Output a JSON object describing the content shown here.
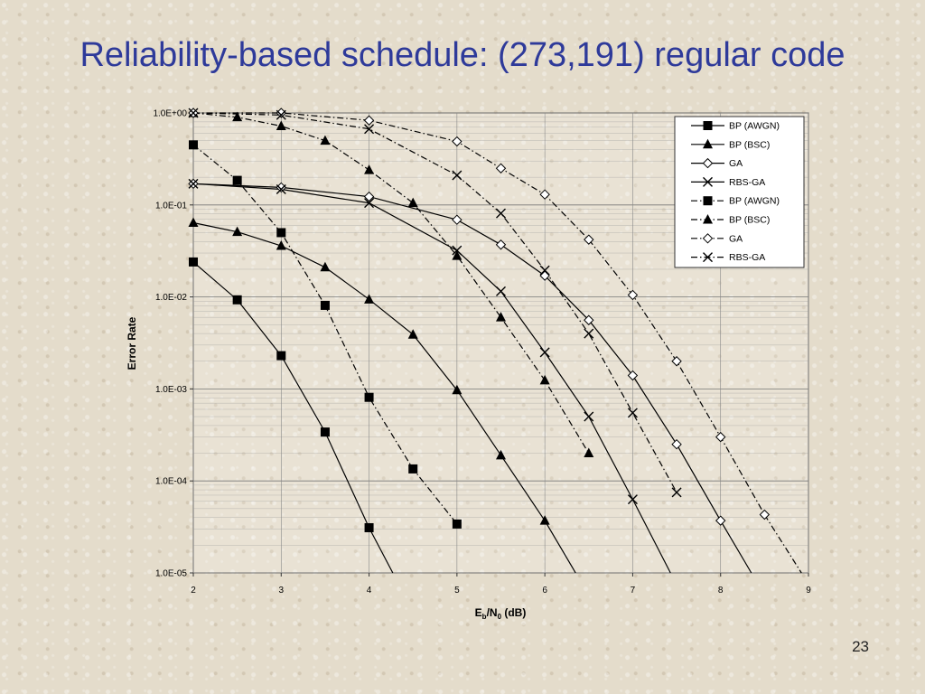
{
  "slide": {
    "title": "Reliability-based schedule: (273,191) regular code",
    "page_number": "23"
  },
  "chart_data": {
    "type": "line",
    "title": "",
    "xlabel_main": "E",
    "xlabel_sub1": "b",
    "xlabel_mid": "/N",
    "xlabel_sub2": "0",
    "xlabel_tail": " (dB)",
    "ylabel": "Error Rate",
    "xlim": [
      2,
      9
    ],
    "ylim": [
      1e-05,
      1
    ],
    "yscale": "log",
    "x_ticks": [
      "2",
      "3",
      "4",
      "5",
      "6",
      "7",
      "8",
      "9"
    ],
    "y_ticks": [
      "1.0E+00",
      "1.0E-01",
      "1.0E-02",
      "1.0E-03",
      "1.0E-04",
      "1.0E-05"
    ],
    "grid": true,
    "legend_position": "top-right",
    "series": [
      {
        "name": "BP (AWGN)",
        "line": "solid",
        "marker": "square",
        "x": [
          2,
          2.5,
          3,
          3.5,
          4
        ],
        "y": [
          0.024,
          0.0093,
          0.0023,
          0.00034,
          3.1e-05
        ],
        "ext_x": [
          4,
          4.27
        ],
        "ext_y": [
          3.1e-05,
          1e-05
        ]
      },
      {
        "name": "BP (BSC)",
        "line": "solid",
        "marker": "triangle",
        "x": [
          2,
          2.5,
          3,
          3.5,
          4,
          4.5,
          5,
          5.5,
          6
        ],
        "y": [
          0.064,
          0.051,
          0.036,
          0.021,
          0.0094,
          0.0039,
          0.00097,
          0.00019,
          3.7e-05
        ],
        "ext_x": [
          6,
          6.35
        ],
        "ext_y": [
          3.7e-05,
          1e-05
        ]
      },
      {
        "name": "GA",
        "line": "solid",
        "marker": "diamond",
        "x": [
          2,
          3,
          4,
          5,
          5.5,
          6,
          6.5,
          7,
          7.5,
          8
        ],
        "y": [
          0.17,
          0.155,
          0.123,
          0.069,
          0.037,
          0.017,
          0.0056,
          0.0014,
          0.00025,
          3.7e-05
        ],
        "ext_x": [
          8,
          8.35
        ],
        "ext_y": [
          3.7e-05,
          1e-05
        ]
      },
      {
        "name": "RBS-GA",
        "line": "solid",
        "marker": "cross",
        "x": [
          2,
          3,
          4,
          5,
          5.5,
          6,
          6.5,
          7
        ],
        "y": [
          0.17,
          0.148,
          0.105,
          0.032,
          0.0115,
          0.0025,
          0.0005,
          6.3e-05
        ],
        "ext_x": [
          7,
          7.43
        ],
        "ext_y": [
          6.3e-05,
          1e-05
        ]
      },
      {
        "name": "BP (AWGN)",
        "line": "dashdot",
        "marker": "square",
        "x": [
          2,
          2.5,
          3,
          3.5,
          4,
          4.5,
          5
        ],
        "y": [
          0.45,
          0.185,
          0.05,
          0.0081,
          0.00081,
          0.000135,
          3.4e-05
        ],
        "ext_x": [],
        "ext_y": []
      },
      {
        "name": "BP (BSC)",
        "line": "dashdot",
        "marker": "triangle",
        "x": [
          2,
          2.5,
          3,
          3.5,
          4,
          4.5,
          5,
          5.5,
          6,
          6.5
        ],
        "y": [
          1.0,
          0.9,
          0.72,
          0.5,
          0.24,
          0.105,
          0.028,
          0.006,
          0.00124,
          0.0002
        ],
        "ext_x": [],
        "ext_y": []
      },
      {
        "name": "GA",
        "line": "dashdot",
        "marker": "diamond",
        "x": [
          2,
          3,
          4,
          5,
          5.5,
          6,
          6.5,
          7,
          7.5,
          8,
          8.5
        ],
        "y": [
          1.0,
          1.0,
          0.83,
          0.49,
          0.25,
          0.13,
          0.042,
          0.0105,
          0.002,
          0.0003,
          4.3e-05
        ],
        "ext_x": [
          8.5,
          8.92
        ],
        "ext_y": [
          4.3e-05,
          1e-05
        ]
      },
      {
        "name": "RBS-GA",
        "line": "dashdot",
        "marker": "cross",
        "x": [
          2,
          3,
          4,
          5,
          5.5,
          6,
          6.5,
          7,
          7.5
        ],
        "y": [
          1.0,
          0.95,
          0.67,
          0.21,
          0.081,
          0.0195,
          0.004,
          0.00055,
          7.5e-05
        ],
        "ext_x": [],
        "ext_y": []
      }
    ]
  }
}
